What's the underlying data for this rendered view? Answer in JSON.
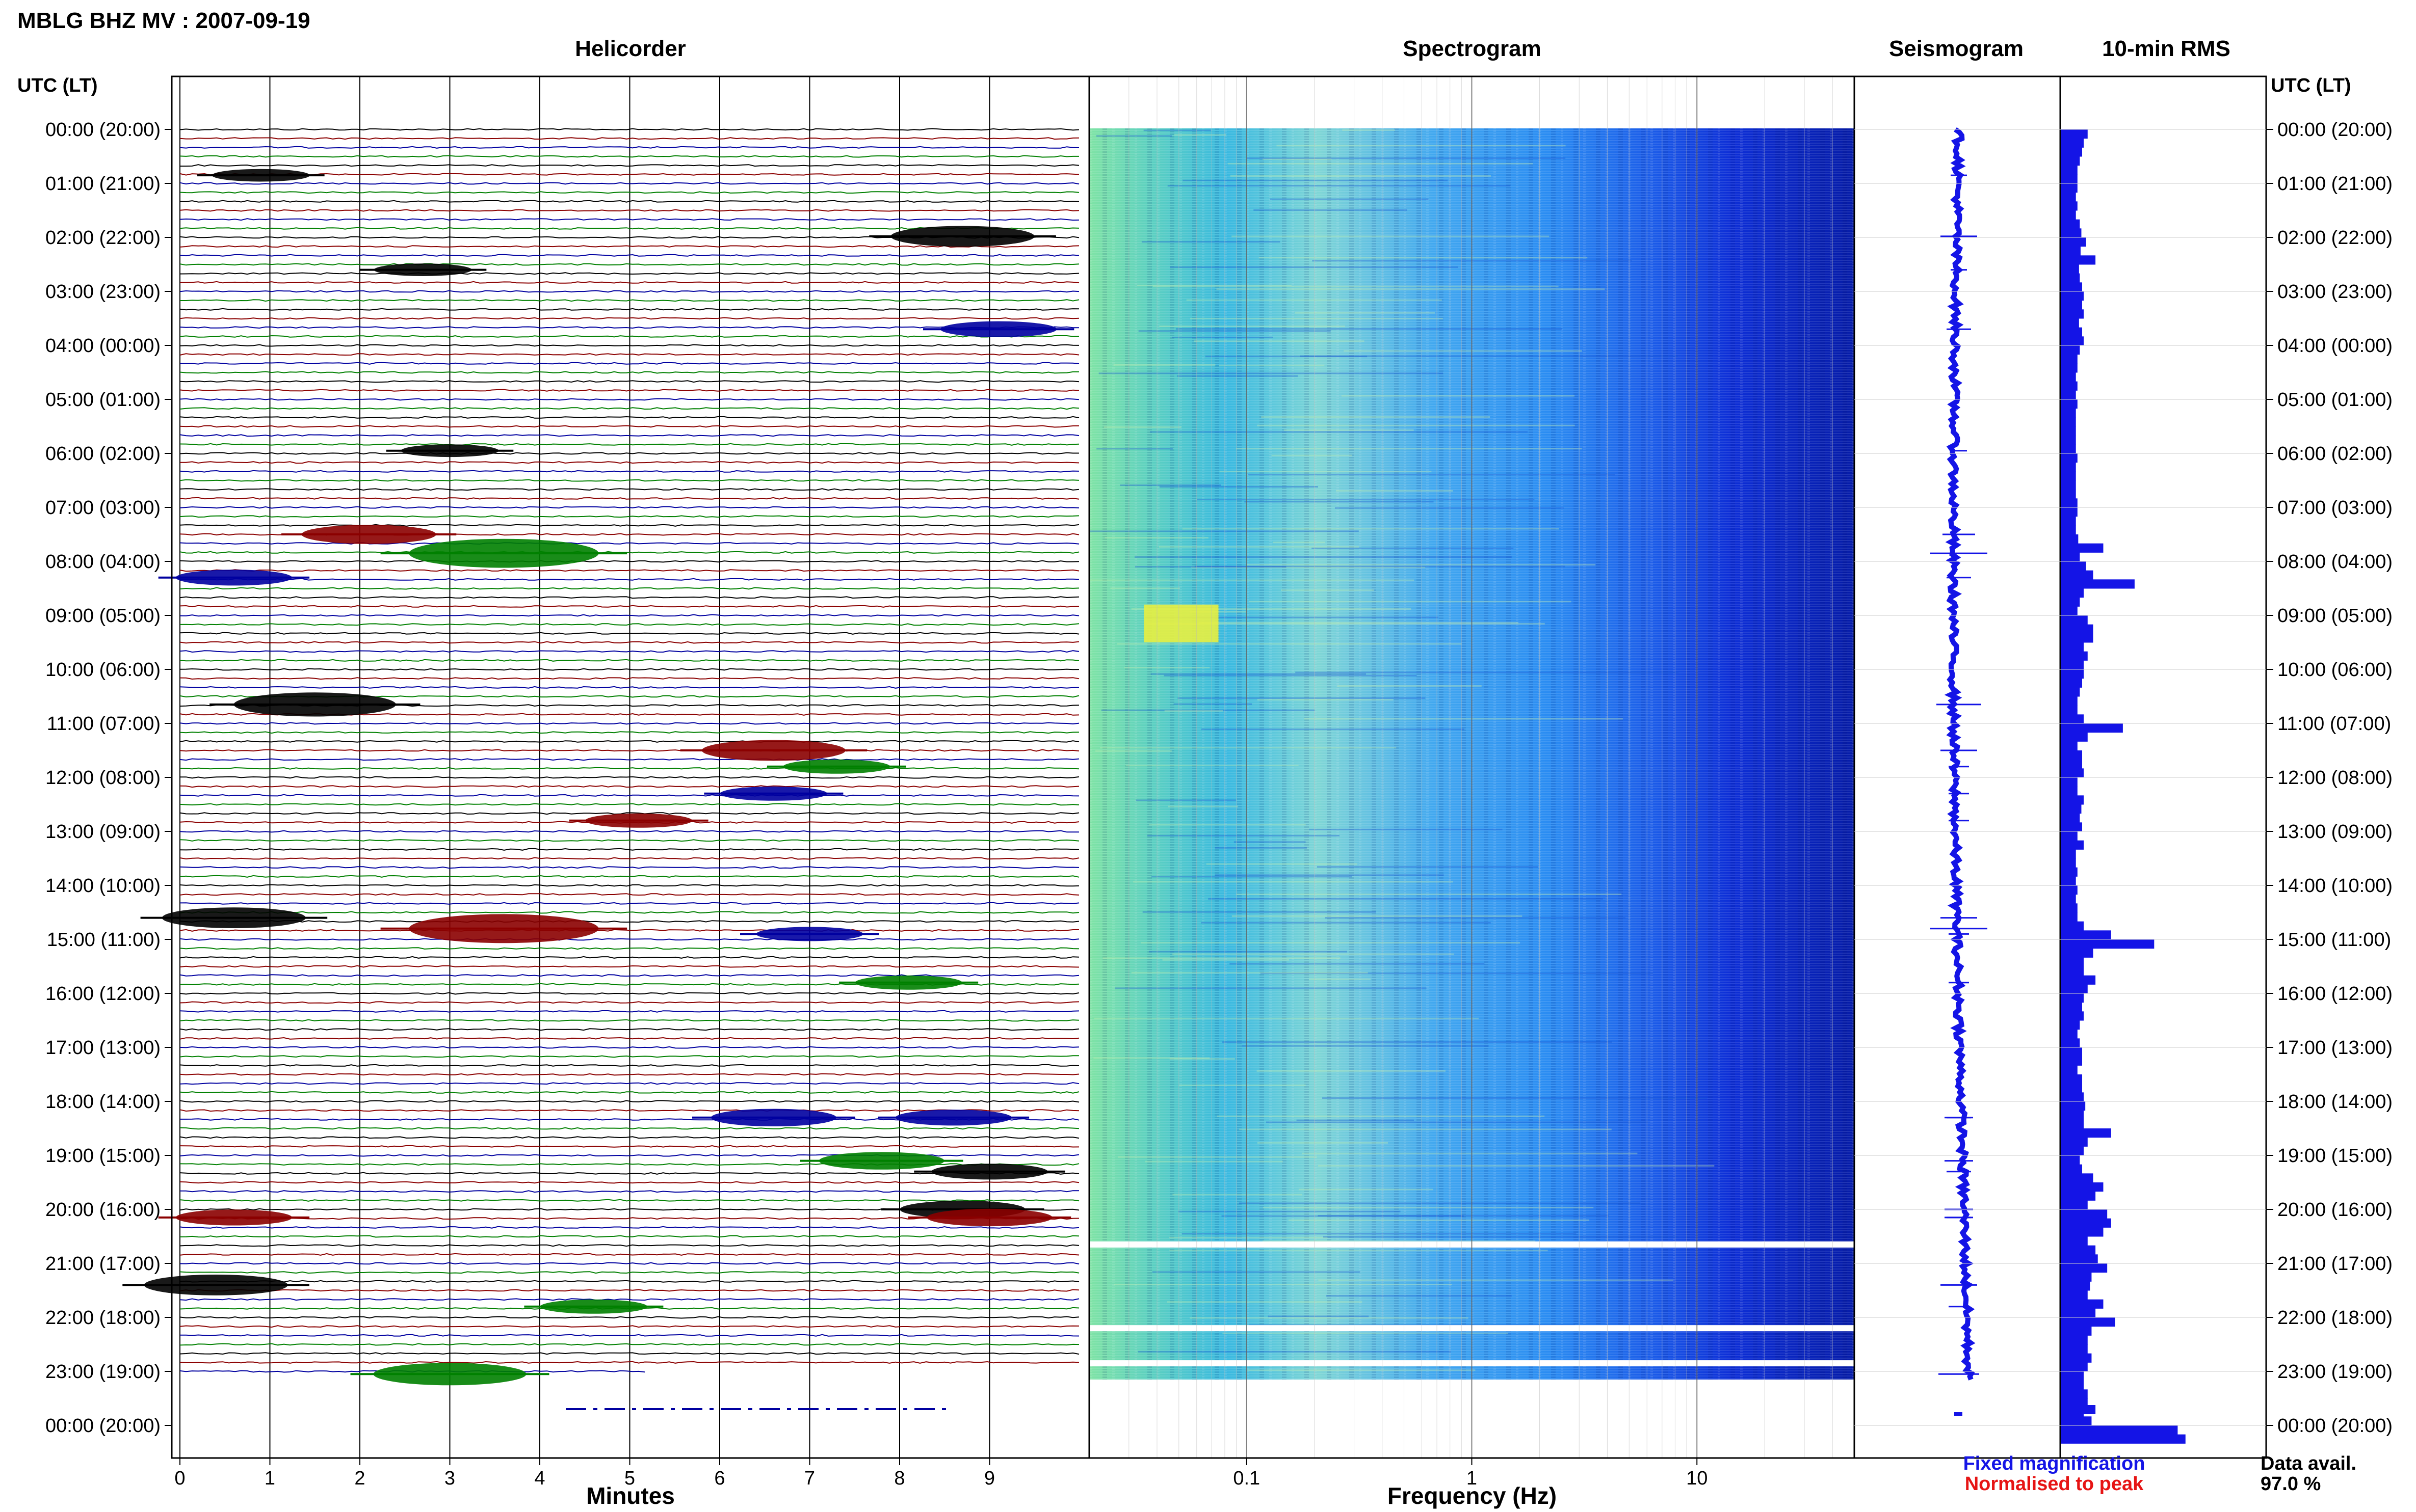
{
  "title": "MBLG BHZ MV : 2007-09-19",
  "panels": {
    "helicorder": "Helicorder",
    "spectrogram": "Spectrogram",
    "seismogram": "Seismogram",
    "rms": "10-min RMS"
  },
  "time_axis": {
    "header_left": "UTC (LT)",
    "header_right": "UTC (LT)",
    "labels": [
      "00:00 (20:00)",
      "01:00 (21:00)",
      "02:00 (22:00)",
      "03:00 (23:00)",
      "04:00 (00:00)",
      "05:00 (01:00)",
      "06:00 (02:00)",
      "07:00 (03:00)",
      "08:00 (04:00)",
      "09:00 (05:00)",
      "10:00 (06:00)",
      "11:00 (07:00)",
      "12:00 (08:00)",
      "13:00 (09:00)",
      "14:00 (10:00)",
      "15:00 (11:00)",
      "16:00 (12:00)",
      "17:00 (13:00)",
      "18:00 (14:00)",
      "19:00 (15:00)",
      "20:00 (16:00)",
      "21:00 (17:00)",
      "22:00 (18:00)",
      "23:00 (19:00)",
      "00:00 (20:00)"
    ]
  },
  "minutes_axis": {
    "label": "Minutes",
    "ticks": [
      "0",
      "1",
      "2",
      "3",
      "4",
      "5",
      "6",
      "7",
      "8",
      "9"
    ]
  },
  "frequency_axis": {
    "label": "Frequency (Hz)",
    "ticks": [
      "0.1",
      "1",
      "10"
    ]
  },
  "legend": {
    "fixed": "Fixed magnification",
    "normalised": "Normalised to peak",
    "fixed_color": "#1414e6",
    "normalised_color": "#e61414"
  },
  "data_avail": {
    "label": "Data avail.",
    "value": "97.0 %"
  },
  "chart_data": {
    "type": "bar",
    "title": "10-min RMS",
    "x_unit": "UTC hour",
    "ylim": [
      0,
      1
    ],
    "trace_colors": [
      "#000000",
      "#8b0000",
      "#0000a0",
      "#008000"
    ],
    "events": [
      {
        "hour": 0.85,
        "minute": 0.9,
        "amp": 0.4,
        "color": "#000000"
      },
      {
        "hour": 1.98,
        "minute": 8.7,
        "amp": 0.9,
        "color": "#000000"
      },
      {
        "hour": 2.6,
        "minute": 2.7,
        "amp": 0.4,
        "color": "#000000"
      },
      {
        "hour": 3.7,
        "minute": 9.1,
        "amp": 0.6,
        "color": "#0000a0"
      },
      {
        "hour": 5.95,
        "minute": 3.0,
        "amp": 0.4,
        "color": "#000000"
      },
      {
        "hour": 7.5,
        "minute": 2.1,
        "amp": 0.8,
        "color": "#8b0000"
      },
      {
        "hour": 7.85,
        "minute": 3.6,
        "amp": 1.4,
        "color": "#008000"
      },
      {
        "hour": 8.3,
        "minute": 0.6,
        "amp": 0.6,
        "color": "#0000a0"
      },
      {
        "hour": 10.65,
        "minute": 1.5,
        "amp": 1.1,
        "color": "#000000"
      },
      {
        "hour": 11.5,
        "minute": 6.6,
        "amp": 0.9,
        "color": "#8b0000"
      },
      {
        "hour": 11.8,
        "minute": 7.3,
        "amp": 0.5,
        "color": "#008000"
      },
      {
        "hour": 12.3,
        "minute": 6.6,
        "amp": 0.5,
        "color": "#0000a0"
      },
      {
        "hour": 12.8,
        "minute": 5.1,
        "amp": 0.5,
        "color": "#8b0000"
      },
      {
        "hour": 14.6,
        "minute": 0.6,
        "amp": 0.9,
        "color": "#000000"
      },
      {
        "hour": 14.8,
        "minute": 3.6,
        "amp": 1.4,
        "color": "#8b0000"
      },
      {
        "hour": 14.9,
        "minute": 7.0,
        "amp": 0.5,
        "color": "#0000a0"
      },
      {
        "hour": 15.8,
        "minute": 8.1,
        "amp": 0.5,
        "color": "#008000"
      },
      {
        "hour": 18.3,
        "minute": 6.6,
        "amp": 0.7,
        "color": "#0000a0"
      },
      {
        "hour": 18.3,
        "minute": 8.6,
        "amp": 0.6,
        "color": "#0000a0"
      },
      {
        "hour": 19.1,
        "minute": 7.8,
        "amp": 0.7,
        "color": "#008000"
      },
      {
        "hour": 19.3,
        "minute": 9.0,
        "amp": 0.6,
        "color": "#000000"
      },
      {
        "hour": 20.0,
        "minute": 8.7,
        "amp": 0.7,
        "color": "#000000"
      },
      {
        "hour": 20.15,
        "minute": 0.6,
        "amp": 0.6,
        "color": "#8b0000"
      },
      {
        "hour": 20.15,
        "minute": 9.0,
        "amp": 0.7,
        "color": "#8b0000"
      },
      {
        "hour": 21.4,
        "minute": 0.4,
        "amp": 0.9,
        "color": "#000000"
      },
      {
        "hour": 21.8,
        "minute": 4.6,
        "amp": 0.5,
        "color": "#008000"
      },
      {
        "hour": 23.05,
        "minute": 3.0,
        "amp": 1.0,
        "color": "#008000"
      }
    ],
    "rms_bins": [
      0.35,
      0.3,
      0.28,
      0.25,
      0.22,
      0.22,
      0.22,
      0.2,
      0.22,
      0.2,
      0.25,
      0.27,
      0.33,
      0.26,
      0.45,
      0.24,
      0.25,
      0.28,
      0.3,
      0.28,
      0.3,
      0.24,
      0.28,
      0.3,
      0.25,
      0.22,
      0.22,
      0.2,
      0.22,
      0.2,
      0.22,
      0.2,
      0.2,
      0.2,
      0.2,
      0.2,
      0.22,
      0.2,
      0.2,
      0.2,
      0.2,
      0.22,
      0.22,
      0.2,
      0.2,
      0.23,
      0.55,
      0.25,
      0.33,
      0.42,
      0.95,
      0.3,
      0.25,
      0.22,
      0.35,
      0.42,
      0.42,
      0.3,
      0.35,
      0.3,
      0.3,
      0.28,
      0.25,
      0.22,
      0.22,
      0.3,
      0.8,
      0.35,
      0.22,
      0.28,
      0.28,
      0.3,
      0.22,
      0.22,
      0.3,
      0.27,
      0.25,
      0.28,
      0.22,
      0.3,
      0.2,
      0.2,
      0.22,
      0.2,
      0.22,
      0.2,
      0.22,
      0.22,
      0.3,
      0.65,
      1.2,
      0.42,
      0.3,
      0.3,
      0.45,
      0.35,
      0.3,
      0.28,
      0.3,
      0.25,
      0.22,
      0.25,
      0.28,
      0.28,
      0.22,
      0.28,
      0.28,
      0.3,
      0.32,
      0.3,
      0.3,
      0.65,
      0.35,
      0.3,
      0.25,
      0.28,
      0.42,
      0.55,
      0.45,
      0.35,
      0.6,
      0.65,
      0.55,
      0.35,
      0.45,
      0.48,
      0.6,
      0.4,
      0.38,
      0.35,
      0.55,
      0.45,
      0.7,
      0.4,
      0.35,
      0.35,
      0.4,
      0.35,
      0.3,
      0.3,
      0.35,
      0.35,
      0.3,
      0.4,
      1.5,
      1.6,
      0.0,
      0.0,
      0.0,
      0.0
    ],
    "rms_partial_last": 0.45,
    "spectrogram": {
      "freq_range_hz": [
        0.02,
        50
      ],
      "gaps_hour": [
        20.65,
        22.2,
        22.85
      ],
      "bright_patch": {
        "hour_from": 8.8,
        "hour_to": 9.5,
        "freq_from": 0.035,
        "freq_to": 0.075
      }
    }
  }
}
